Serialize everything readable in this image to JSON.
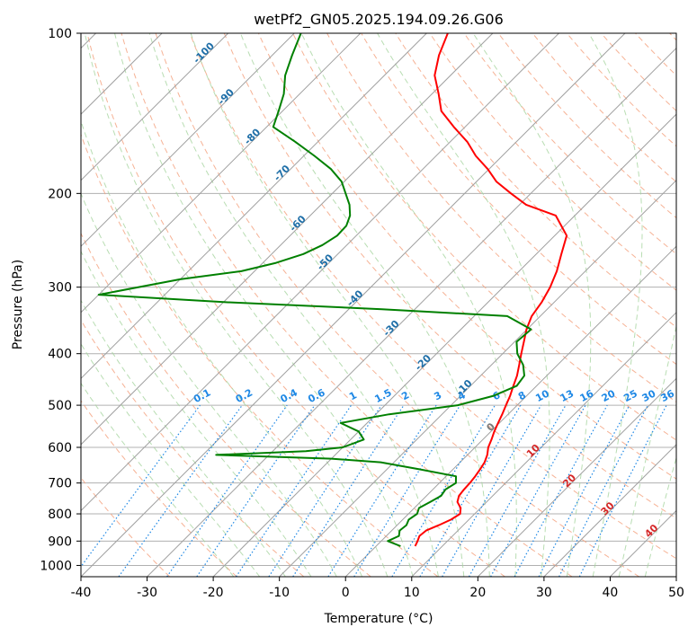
{
  "chart_data": {
    "type": "line",
    "title": "wetPf2_GN05.2025.194.09.26.G06",
    "xlabel": "Temperature (°C)",
    "ylabel": "Pressure (hPa)",
    "xlim": [
      -40,
      50
    ],
    "ylim": [
      1050,
      100
    ],
    "y_scale": "log",
    "grid": true,
    "x_ticks": [
      -40,
      -30,
      -20,
      -10,
      0,
      10,
      20,
      30,
      40,
      50
    ],
    "y_ticks": [
      100,
      200,
      300,
      400,
      500,
      600,
      700,
      800,
      900,
      1000
    ],
    "colors": {
      "temperature": "#ff0000",
      "dewpoint": "#008000",
      "isotherm": "#a0a0a0",
      "dry_adiabat": "#f4a582",
      "moist_adiabat": "#a6d49f",
      "mixing_ratio": "#1e88e5"
    },
    "series": [
      {
        "role": "temperature",
        "points": [
          [
            5.9,
            920
          ],
          [
            5.5,
            900
          ],
          [
            5.0,
            880
          ],
          [
            5.2,
            860
          ],
          [
            6.3,
            840
          ],
          [
            7.3,
            820
          ],
          [
            7.8,
            800
          ],
          [
            7.0,
            780
          ],
          [
            5.6,
            760
          ],
          [
            4.9,
            740
          ],
          [
            4.7,
            720
          ],
          [
            4.6,
            700
          ],
          [
            4.4,
            680
          ],
          [
            4.1,
            660
          ],
          [
            3.7,
            640
          ],
          [
            3.0,
            620
          ],
          [
            2.0,
            600
          ],
          [
            1.3,
            580
          ],
          [
            0.5,
            560
          ],
          [
            -0.2,
            540
          ],
          [
            -0.9,
            520
          ],
          [
            -1.7,
            500
          ],
          [
            -2.5,
            480
          ],
          [
            -3.5,
            460
          ],
          [
            -4.5,
            440
          ],
          [
            -5.8,
            420
          ],
          [
            -7.2,
            400
          ],
          [
            -8.6,
            380
          ],
          [
            -10.1,
            360
          ],
          [
            -11.3,
            340
          ],
          [
            -11.9,
            320
          ],
          [
            -12.9,
            300
          ],
          [
            -14.3,
            280
          ],
          [
            -16.2,
            260
          ],
          [
            -18.2,
            240
          ],
          [
            -22.9,
            220
          ],
          [
            -29.0,
            210
          ],
          [
            -33.0,
            200
          ],
          [
            -37.0,
            190
          ],
          [
            -40.2,
            180
          ],
          [
            -44.0,
            170
          ],
          [
            -47.4,
            160
          ],
          [
            -51.7,
            150
          ],
          [
            -56.0,
            140
          ],
          [
            -59.0,
            130
          ],
          [
            -62.4,
            120
          ],
          [
            -64.8,
            110
          ],
          [
            -66.8,
            100
          ]
        ]
      },
      {
        "role": "dewpoint",
        "points": [
          [
            3.7,
            920
          ],
          [
            1.0,
            900
          ],
          [
            1.9,
            880
          ],
          [
            1.2,
            860
          ],
          [
            1.4,
            840
          ],
          [
            0.9,
            820
          ],
          [
            1.3,
            800
          ],
          [
            0.7,
            780
          ],
          [
            1.5,
            760
          ],
          [
            2.2,
            740
          ],
          [
            1.9,
            720
          ],
          [
            2.5,
            700
          ],
          [
            1.5,
            680
          ],
          [
            -5,
            660
          ],
          [
            -12,
            640
          ],
          [
            -20,
            630
          ],
          [
            -38,
            620
          ],
          [
            -25,
            610
          ],
          [
            -20,
            600
          ],
          [
            -18,
            580
          ],
          [
            -20,
            560
          ],
          [
            -24,
            540
          ],
          [
            -18,
            520
          ],
          [
            -9,
            500
          ],
          [
            -5,
            480
          ],
          [
            -3,
            460
          ],
          [
            -3.4,
            440
          ],
          [
            -5.2,
            420
          ],
          [
            -7.8,
            400
          ],
          [
            -9.7,
            380
          ],
          [
            -9.4,
            360
          ],
          [
            -15.0,
            340
          ],
          [
            -35.0,
            330
          ],
          [
            -60.0,
            320
          ],
          [
            -80.0,
            310
          ],
          [
            -70.0,
            290
          ],
          [
            -62.0,
            280
          ],
          [
            -58.0,
            270
          ],
          [
            -55.2,
            260
          ],
          [
            -53.7,
            250
          ],
          [
            -52.9,
            240
          ],
          [
            -53.0,
            230
          ],
          [
            -54.0,
            220
          ],
          [
            -55.7,
            210
          ],
          [
            -58.0,
            200
          ],
          [
            -60.4,
            190
          ],
          [
            -63.9,
            180
          ],
          [
            -68.4,
            170
          ],
          [
            -73.4,
            160
          ],
          [
            -79.0,
            150
          ],
          [
            -80.6,
            140
          ],
          [
            -82.4,
            130
          ],
          [
            -85.0,
            120
          ],
          [
            -87.0,
            110
          ],
          [
            -89.0,
            100
          ]
        ]
      }
    ],
    "dry_adiabat_labels": [
      "-100",
      "-90",
      "-80",
      "-70",
      "-60",
      "-50",
      "-40",
      "-30",
      "-20",
      "-10"
    ],
    "zero_label": "0",
    "moist_adiabat_labels": [
      "10",
      "20",
      "30",
      "40"
    ],
    "mixing_ratio_labels": [
      "0.1",
      "0.2",
      "0.4",
      "0.6",
      "1",
      "1.5",
      "2",
      "3",
      "4",
      "6",
      "8",
      "10",
      "13",
      "16",
      "20",
      "25",
      "30",
      "36"
    ]
  }
}
